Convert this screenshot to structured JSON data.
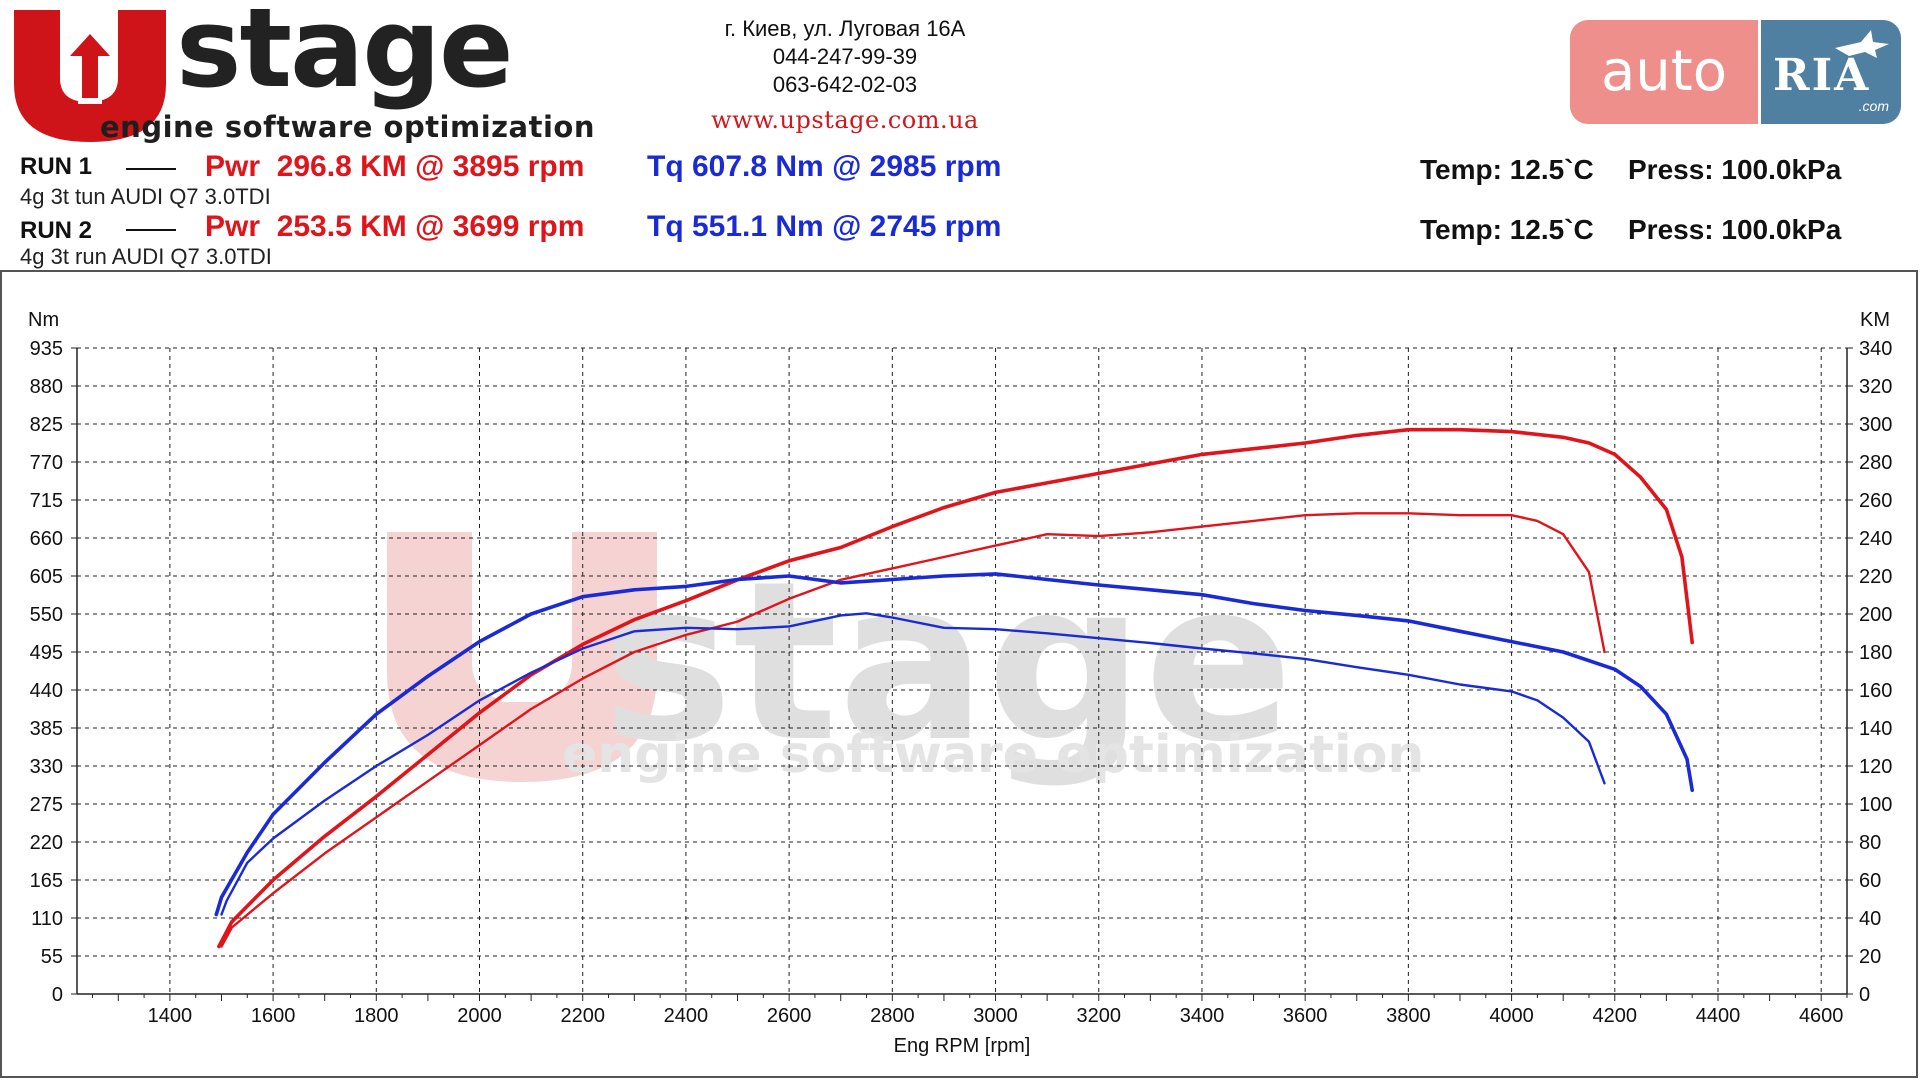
{
  "logo": {
    "brand": "stage",
    "tagline": "engine software optimization"
  },
  "contact": {
    "address": "г. Киев, ул. Луговая 16А",
    "phone1": "044-247-99-39",
    "phone2": "063-642-02-03",
    "website": "www.upstage.com.ua"
  },
  "partner": {
    "auto": "auto",
    "ria": "RIA",
    "com": ".com"
  },
  "runs": [
    {
      "label": "RUN 1",
      "car": "4g 3t tun AUDI Q7 3.0TDI",
      "power": "Pwr  296.8 KM @ 3895 rpm",
      "torque": "Tq 607.8 Nm @ 2985 rpm",
      "temp": "Temp: 12.5`C",
      "press": "Press: 100.0kPa"
    },
    {
      "label": "RUN 2",
      "car": "4g 3t run AUDI Q7 3.0TDI",
      "power": "Pwr  253.5 KM @ 3699 rpm",
      "torque": "Tq 551.1 Nm @ 2745 rpm",
      "temp": "Temp: 12.5`C",
      "press": "Press: 100.0kPa"
    }
  ],
  "colors": {
    "power": "#e0141b",
    "torque": "#1a2bd6",
    "watermark_red": "#f4c6c6",
    "watermark_gray": "#dcdcdc"
  },
  "chart_data": {
    "type": "line",
    "xlabel": "Eng RPM [rpm]",
    "ylabel_left": "Nm",
    "ylabel_right": "KM",
    "xlim": [
      1220,
      4650
    ],
    "ylim_left": [
      0,
      935
    ],
    "ylim_right": [
      0,
      340
    ],
    "x_ticks": [
      1400,
      1600,
      1800,
      2000,
      2200,
      2400,
      2600,
      2800,
      3000,
      3200,
      3400,
      3600,
      3800,
      4000,
      4200,
      4400,
      4600
    ],
    "y_left_ticks": [
      0,
      55,
      110,
      165,
      220,
      275,
      330,
      385,
      440,
      495,
      550,
      605,
      660,
      715,
      770,
      825,
      880,
      935
    ],
    "y_right_ticks": [
      0,
      20,
      40,
      60,
      80,
      100,
      120,
      140,
      160,
      180,
      200,
      220,
      240,
      260,
      280,
      300,
      320,
      340
    ],
    "grid": true,
    "watermark": {
      "brand": "stage",
      "tagline": "engine software optimization"
    },
    "series": [
      {
        "name": "RUN 1",
        "quantity": "power",
        "axis": "right",
        "x": [
          1495,
          1520,
          1600,
          1700,
          1800,
          1900,
          2000,
          2100,
          2200,
          2300,
          2400,
          2500,
          2600,
          2700,
          2800,
          2900,
          3000,
          3100,
          3200,
          3300,
          3400,
          3500,
          3600,
          3700,
          3800,
          3900,
          4000,
          4100,
          4150,
          4200,
          4250,
          4300,
          4330,
          4350
        ],
        "y": [
          25,
          38,
          60,
          83,
          104,
          126,
          148,
          168,
          184,
          197,
          207,
          218,
          228,
          235,
          246,
          256,
          264,
          269,
          274,
          279,
          284,
          287,
          290,
          294,
          297,
          297,
          296,
          293,
          290,
          284,
          272,
          255,
          230,
          185
        ]
      },
      {
        "name": "RUN 2",
        "quantity": "power",
        "axis": "right",
        "x": [
          1500,
          1520,
          1600,
          1700,
          1800,
          1900,
          2000,
          2100,
          2200,
          2300,
          2400,
          2500,
          2600,
          2700,
          2800,
          2900,
          3000,
          3100,
          3200,
          3300,
          3400,
          3500,
          3600,
          3700,
          3800,
          3900,
          4000,
          4050,
          4100,
          4150,
          4180
        ],
        "y": [
          25,
          35,
          53,
          74,
          93,
          112,
          131,
          150,
          166,
          180,
          189,
          196,
          208,
          218,
          224,
          230,
          236,
          242,
          241,
          243,
          246,
          249,
          252,
          253,
          253,
          252,
          252,
          249,
          242,
          222,
          180
        ]
      },
      {
        "name": "RUN 1",
        "quantity": "torque",
        "axis": "left",
        "x": [
          1490,
          1500,
          1550,
          1600,
          1700,
          1800,
          1900,
          2000,
          2100,
          2200,
          2300,
          2400,
          2500,
          2600,
          2700,
          2800,
          2900,
          3000,
          3100,
          3200,
          3300,
          3400,
          3500,
          3600,
          3700,
          3800,
          3900,
          4000,
          4100,
          4200,
          4250,
          4300,
          4340,
          4350
        ],
        "y": [
          115,
          140,
          205,
          260,
          335,
          405,
          460,
          510,
          550,
          575,
          585,
          590,
          600,
          605,
          595,
          600,
          605,
          608,
          600,
          592,
          585,
          578,
          565,
          555,
          548,
          540,
          525,
          510,
          495,
          470,
          445,
          405,
          340,
          295
        ]
      },
      {
        "name": "RUN 2",
        "quantity": "torque",
        "axis": "left",
        "x": [
          1500,
          1510,
          1550,
          1600,
          1700,
          1800,
          1900,
          2000,
          2100,
          2200,
          2300,
          2400,
          2500,
          2600,
          2700,
          2750,
          2800,
          2900,
          3000,
          3100,
          3200,
          3300,
          3400,
          3500,
          3600,
          3700,
          3800,
          3900,
          4000,
          4050,
          4100,
          4150,
          4180
        ],
        "y": [
          115,
          135,
          190,
          225,
          280,
          330,
          375,
          425,
          465,
          500,
          525,
          530,
          528,
          532,
          548,
          551,
          545,
          530,
          528,
          522,
          515,
          508,
          500,
          493,
          485,
          473,
          462,
          448,
          438,
          425,
          400,
          365,
          305
        ]
      }
    ]
  }
}
